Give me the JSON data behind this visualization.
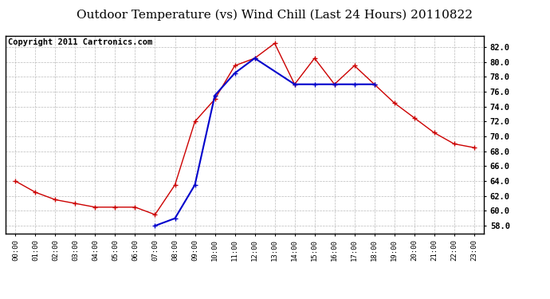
{
  "title": "Outdoor Temperature (vs) Wind Chill (Last 24 Hours) 20110822",
  "copyright": "Copyright 2011 Cartronics.com",
  "x_labels": [
    "00:00",
    "01:00",
    "02:00",
    "03:00",
    "04:00",
    "05:00",
    "06:00",
    "07:00",
    "08:00",
    "09:00",
    "10:00",
    "11:00",
    "12:00",
    "13:00",
    "14:00",
    "15:00",
    "16:00",
    "17:00",
    "18:00",
    "19:00",
    "20:00",
    "21:00",
    "22:00",
    "23:00"
  ],
  "temp_red": [
    64.0,
    62.5,
    61.5,
    61.0,
    60.5,
    60.5,
    60.5,
    59.5,
    63.5,
    72.0,
    75.0,
    79.5,
    80.5,
    82.5,
    77.0,
    80.5,
    77.0,
    79.5,
    77.0,
    74.5,
    72.5,
    70.5,
    69.0,
    68.5
  ],
  "wind_chill_blue": [
    null,
    null,
    null,
    null,
    null,
    null,
    null,
    58.0,
    59.0,
    63.5,
    75.5,
    78.5,
    80.5,
    null,
    77.0,
    77.0,
    77.0,
    77.0,
    77.0,
    null,
    null,
    null,
    null,
    null
  ],
  "ylim": [
    57.0,
    83.5
  ],
  "yticks": [
    58.0,
    60.0,
    62.0,
    64.0,
    66.0,
    68.0,
    70.0,
    72.0,
    74.0,
    76.0,
    78.0,
    80.0,
    82.0
  ],
  "red_color": "#cc0000",
  "blue_color": "#0000cc",
  "grid_color": "#bbbbbb",
  "bg_color": "#ffffff",
  "title_fontsize": 11,
  "copyright_fontsize": 7.5
}
